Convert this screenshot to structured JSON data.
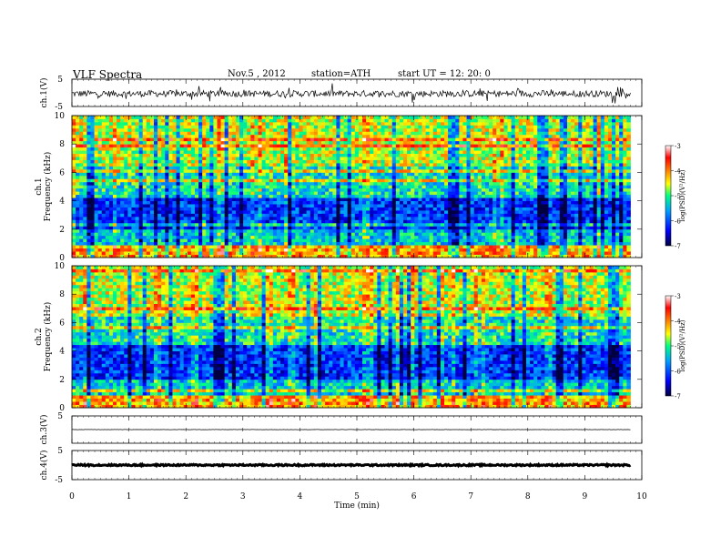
{
  "header": {
    "title": "VLF  Spectra",
    "date": "Nov.5  , 2012",
    "station": "station=ATH",
    "start": "start  UT  =    12: 20: 0"
  },
  "chart_data": [
    {
      "type": "line",
      "ylabel": "ch.1(V)",
      "ylim": [
        -5,
        5
      ],
      "yticks": [
        5,
        -5
      ],
      "description_series": "noisy waveform around 0 V",
      "baseline": 0.0,
      "noise_amplitude": 1.2
    },
    {
      "type": "heatmap",
      "ylabel_lines": [
        "ch.1",
        "Frequency  (kHz)"
      ],
      "ylim": [
        0,
        10
      ],
      "yticks": [
        0,
        2,
        4,
        6,
        8,
        10
      ],
      "xlim": [
        0,
        9.8
      ],
      "colorbar": {
        "label": "log(PSD)(V²/Hz)",
        "range": [
          -7,
          -3
        ],
        "ticks": [
          "-3",
          "-4",
          "-5",
          "-6",
          "-7"
        ],
        "colors": [
          "#000040",
          "#0000ff",
          "#00a0ff",
          "#00ff80",
          "#ffff00",
          "#ff8000",
          "#ff0000",
          "#ffffff"
        ]
      }
    },
    {
      "type": "heatmap",
      "ylabel_lines": [
        "ch.2",
        "Frequency  (kHz)"
      ],
      "ylim": [
        0,
        10
      ],
      "yticks": [
        0,
        2,
        4,
        6,
        8,
        10
      ],
      "xlim": [
        0,
        9.8
      ],
      "colorbar": {
        "label": "log(PSD)(V²/Hz)",
        "range": [
          -7,
          -3
        ],
        "ticks": [
          "-3",
          "-4",
          "-5",
          "-6",
          "-7"
        ],
        "colors": [
          "#000040",
          "#0000ff",
          "#00a0ff",
          "#00ff80",
          "#ffff00",
          "#ff8000",
          "#ff0000",
          "#ffffff"
        ]
      }
    },
    {
      "type": "line",
      "ylabel": "ch.3(V)",
      "ylim": [
        -5,
        5
      ],
      "yticks": [
        5
      ],
      "baseline": 0.0,
      "noise_amplitude": 0.05
    },
    {
      "type": "line",
      "ylabel": "ch.4(V)",
      "ylim": [
        -5,
        5
      ],
      "yticks": [
        5,
        -5
      ],
      "baseline": 0.0,
      "noise_amplitude": 0.25
    }
  ],
  "xaxis": {
    "label": "Time  (min)",
    "ticks": [
      0,
      1,
      2,
      3,
      4,
      5,
      6,
      7,
      8,
      9,
      10
    ],
    "range": [
      0,
      10
    ]
  }
}
